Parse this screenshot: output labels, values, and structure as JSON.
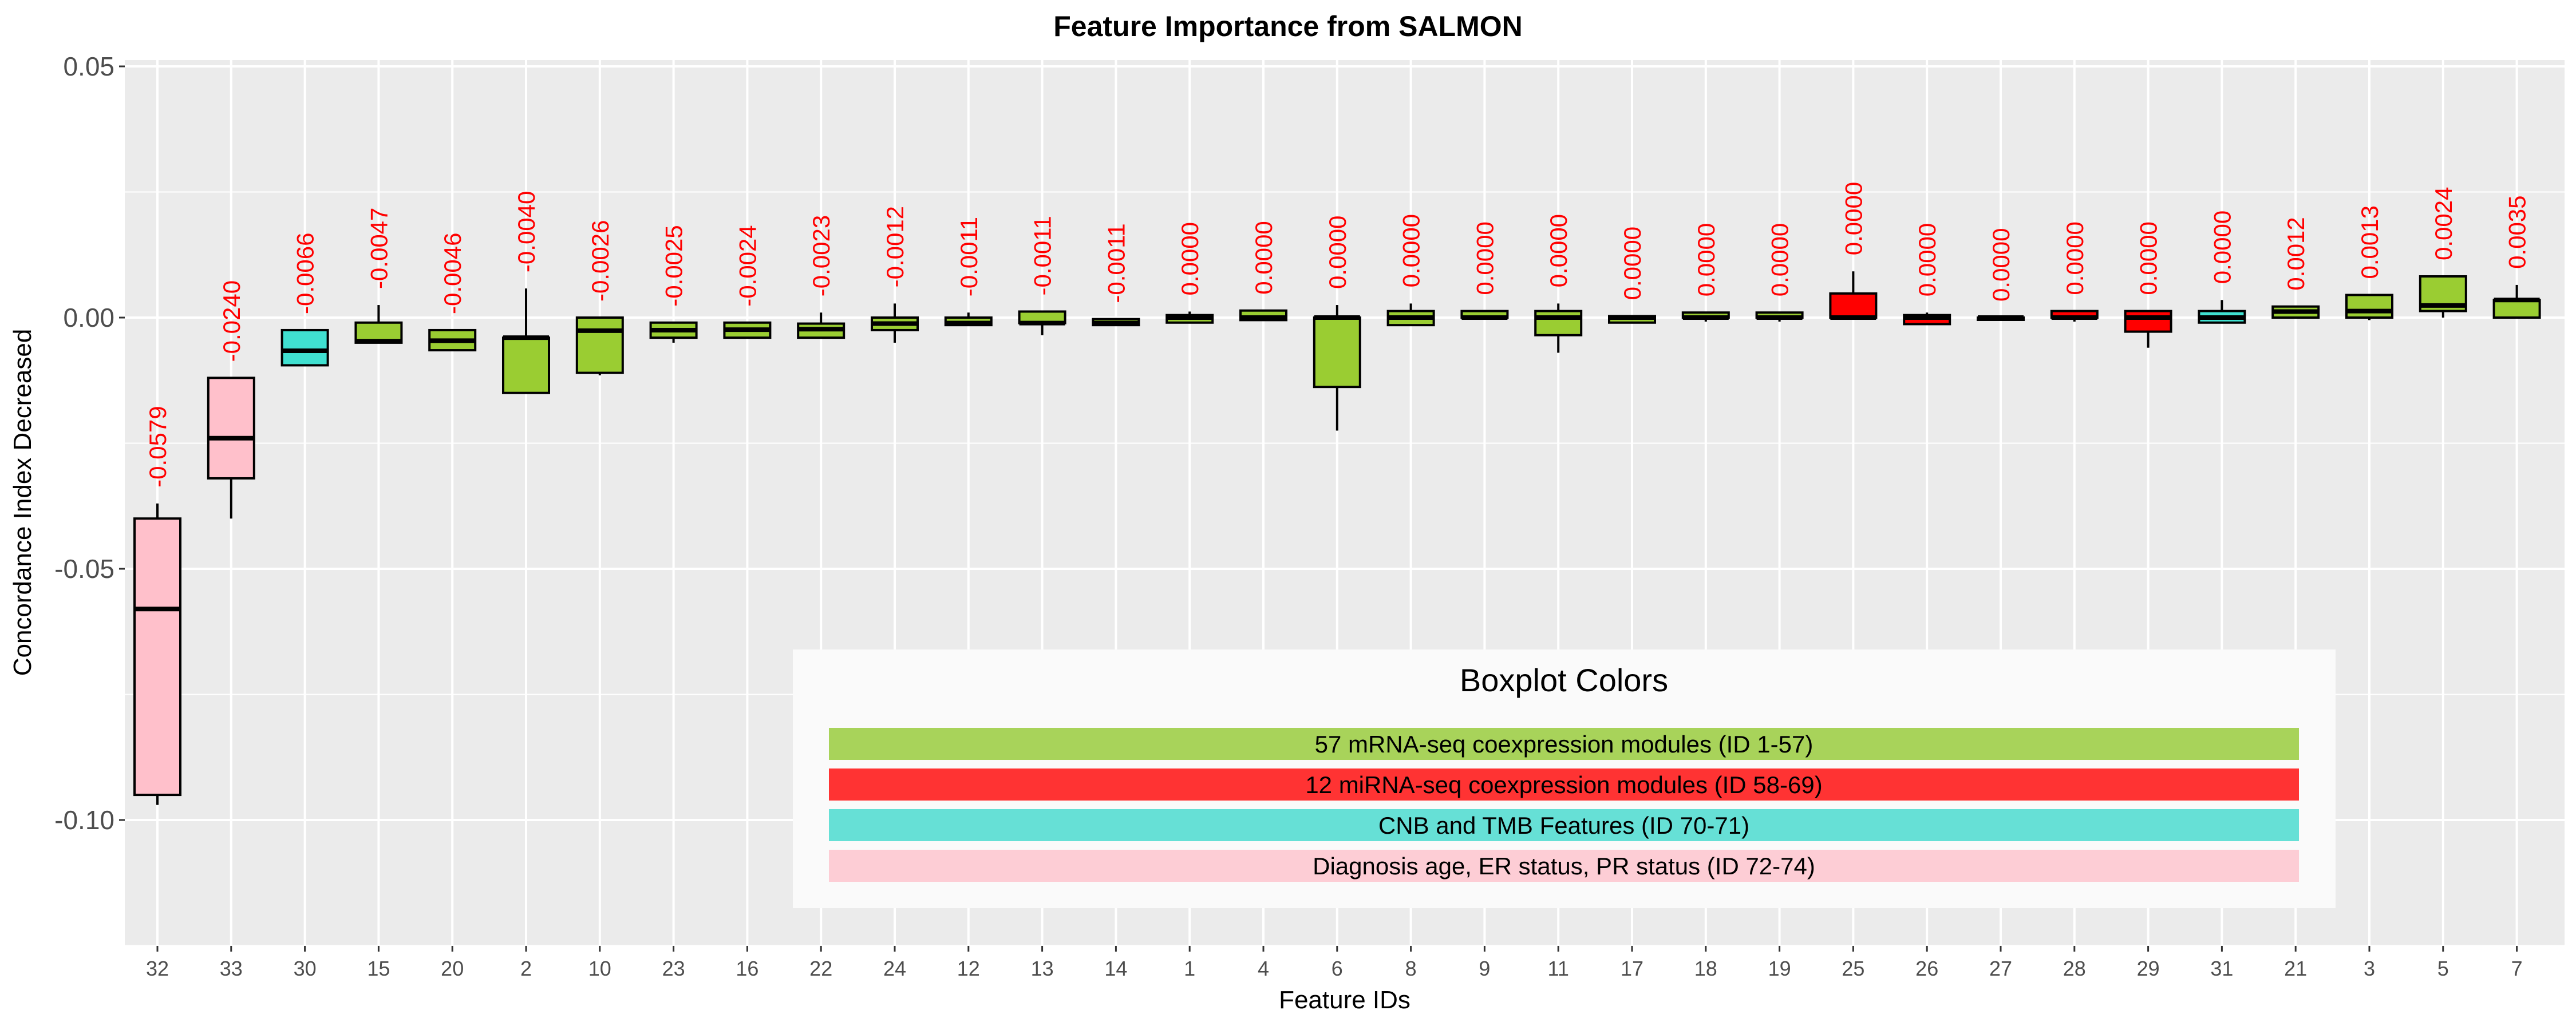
{
  "chart_data": {
    "type": "box",
    "title": "Feature Importance from SALMON",
    "xlabel": "Feature IDs",
    "ylabel": "Concordance Index Decreased",
    "ylim": [
      -0.125,
      0.052
    ],
    "yticks": [
      0.05,
      0.0,
      -0.05,
      -0.1
    ],
    "ytick_labels": [
      "0.05",
      "0.00",
      "-0.05",
      "-0.10"
    ],
    "grid": true,
    "colors": {
      "mrna": "#9ACD32",
      "mirna": "#FF0000",
      "cnb_tmb": "#40E0D0",
      "clinical": "#FFC0CB",
      "label": "#FF0000",
      "panel": "#EBEBEB",
      "grid": "#FFFFFF"
    },
    "boxes": [
      {
        "id": "32",
        "group": "clinical",
        "wlo": -0.097,
        "q1": -0.095,
        "med": -0.058,
        "q3": -0.04,
        "whi": -0.037,
        "label": "-0.0579"
      },
      {
        "id": "33",
        "group": "clinical",
        "wlo": -0.04,
        "q1": -0.032,
        "med": -0.024,
        "q3": -0.012,
        "whi": -0.012,
        "label": "-0.0240"
      },
      {
        "id": "30",
        "group": "cnb_tmb",
        "wlo": -0.0095,
        "q1": -0.0095,
        "med": -0.0066,
        "q3": -0.0025,
        "whi": -0.0025,
        "label": "-0.0066"
      },
      {
        "id": "15",
        "group": "mrna",
        "wlo": -0.005,
        "q1": -0.005,
        "med": -0.0047,
        "q3": -0.001,
        "whi": 0.0025,
        "label": "-0.0047"
      },
      {
        "id": "20",
        "group": "mrna",
        "wlo": -0.0065,
        "q1": -0.0065,
        "med": -0.0046,
        "q3": -0.0025,
        "whi": -0.0025,
        "label": "-0.0046"
      },
      {
        "id": "2",
        "group": "mrna",
        "wlo": -0.015,
        "q1": -0.015,
        "med": -0.004,
        "q3": -0.004,
        "whi": 0.0058,
        "label": "-0.0040"
      },
      {
        "id": "10",
        "group": "mrna",
        "wlo": -0.0115,
        "q1": -0.011,
        "med": -0.0026,
        "q3": 0.0,
        "whi": 0.0,
        "label": "-0.0026"
      },
      {
        "id": "23",
        "group": "mrna",
        "wlo": -0.005,
        "q1": -0.004,
        "med": -0.0025,
        "q3": -0.001,
        "whi": -0.001,
        "label": "-0.0025"
      },
      {
        "id": "16",
        "group": "mrna",
        "wlo": -0.004,
        "q1": -0.004,
        "med": -0.0024,
        "q3": -0.001,
        "whi": -0.001,
        "label": "-0.0024"
      },
      {
        "id": "22",
        "group": "mrna",
        "wlo": -0.004,
        "q1": -0.004,
        "med": -0.0023,
        "q3": -0.0012,
        "whi": 0.001,
        "label": "-0.0023"
      },
      {
        "id": "24",
        "group": "mrna",
        "wlo": -0.005,
        "q1": -0.0025,
        "med": -0.0012,
        "q3": 0.0,
        "whi": 0.0028,
        "label": "-0.0012"
      },
      {
        "id": "12",
        "group": "mrna",
        "wlo": -0.0015,
        "q1": -0.0015,
        "med": -0.0011,
        "q3": 0.0,
        "whi": 0.001,
        "label": "-0.0011"
      },
      {
        "id": "13",
        "group": "mrna",
        "wlo": -0.0035,
        "q1": -0.0011,
        "med": -0.0011,
        "q3": 0.0012,
        "whi": 0.0012,
        "label": "-0.0011"
      },
      {
        "id": "14",
        "group": "mrna",
        "wlo": -0.0015,
        "q1": -0.0015,
        "med": -0.0011,
        "q3": -0.0003,
        "whi": -0.0003,
        "label": "-0.0011"
      },
      {
        "id": "1",
        "group": "mrna",
        "wlo": -0.001,
        "q1": -0.001,
        "med": 0.0,
        "q3": 0.0005,
        "whi": 0.0012,
        "label": "0.0000"
      },
      {
        "id": "4",
        "group": "mrna",
        "wlo": -0.0005,
        "q1": -0.0005,
        "med": 0.0,
        "q3": 0.0014,
        "whi": 0.0014,
        "label": "0.0000"
      },
      {
        "id": "6",
        "group": "mrna",
        "wlo": -0.0225,
        "q1": -0.0138,
        "med": 0.0,
        "q3": 0.0,
        "whi": 0.0025,
        "label": "0.0000"
      },
      {
        "id": "8",
        "group": "mrna",
        "wlo": -0.0015,
        "q1": -0.0015,
        "med": 0.0,
        "q3": 0.0013,
        "whi": 0.0028,
        "label": "0.0000"
      },
      {
        "id": "9",
        "group": "mrna",
        "wlo": 0.0,
        "q1": 0.0,
        "med": 0.0,
        "q3": 0.0013,
        "whi": 0.0013,
        "label": "0.0000"
      },
      {
        "id": "11",
        "group": "mrna",
        "wlo": -0.007,
        "q1": -0.0035,
        "med": 0.0,
        "q3": 0.0013,
        "whi": 0.0028,
        "label": "0.0000"
      },
      {
        "id": "17",
        "group": "mrna",
        "wlo": -0.001,
        "q1": -0.001,
        "med": 0.0,
        "q3": 0.0003,
        "whi": 0.0003,
        "label": "0.0000"
      },
      {
        "id": "18",
        "group": "mrna",
        "wlo": -0.0008,
        "q1": 0.0,
        "med": 0.0,
        "q3": 0.001,
        "whi": 0.001,
        "label": "0.0000"
      },
      {
        "id": "19",
        "group": "mrna",
        "wlo": -0.0008,
        "q1": 0.0,
        "med": 0.0,
        "q3": 0.001,
        "whi": 0.001,
        "label": "0.0000"
      },
      {
        "id": "25",
        "group": "mirna",
        "wlo": 0.0,
        "q1": 0.0,
        "med": 0.0,
        "q3": 0.0048,
        "whi": 0.0092,
        "label": "0.0000"
      },
      {
        "id": "26",
        "group": "mirna",
        "wlo": -0.0013,
        "q1": -0.0013,
        "med": 0.0,
        "q3": 0.0005,
        "whi": 0.001,
        "label": "0.0000"
      },
      {
        "id": "27",
        "group": "mirna",
        "wlo": 0.0,
        "q1": 0.0,
        "med": 0.0,
        "q3": 0.0,
        "whi": 0.0,
        "label": "0.0000"
      },
      {
        "id": "28",
        "group": "mirna",
        "wlo": -0.0008,
        "q1": 0.0,
        "med": 0.0,
        "q3": 0.0013,
        "whi": 0.0013,
        "label": "0.0000"
      },
      {
        "id": "29",
        "group": "mirna",
        "wlo": -0.006,
        "q1": -0.0028,
        "med": 0.0,
        "q3": 0.0013,
        "whi": 0.0013,
        "label": "0.0000"
      },
      {
        "id": "31",
        "group": "cnb_tmb",
        "wlo": -0.001,
        "q1": -0.001,
        "med": 0.0,
        "q3": 0.0013,
        "whi": 0.0035,
        "label": "0.0000"
      },
      {
        "id": "21",
        "group": "mrna",
        "wlo": 0.0,
        "q1": 0.0,
        "med": 0.0012,
        "q3": 0.0022,
        "whi": 0.0022,
        "label": "0.0012"
      },
      {
        "id": "3",
        "group": "mrna",
        "wlo": -0.0005,
        "q1": 0.0,
        "med": 0.0013,
        "q3": 0.0045,
        "whi": 0.0045,
        "label": "0.0013"
      },
      {
        "id": "5",
        "group": "mrna",
        "wlo": 0.0,
        "q1": 0.0013,
        "med": 0.0024,
        "q3": 0.0082,
        "whi": 0.0082,
        "label": "0.0024"
      },
      {
        "id": "7",
        "group": "mrna",
        "wlo": 0.0,
        "q1": 0.0,
        "med": 0.0035,
        "q3": 0.0035,
        "whi": 0.0065,
        "label": "0.0035"
      }
    ],
    "legend": {
      "title": "Boxplot Colors",
      "placement": "bottom-center",
      "items": [
        {
          "group": "mrna",
          "label": "57 mRNA-seq coexpression modules (ID 1-57)",
          "color": "#A8D35A",
          "text_color": "#000000"
        },
        {
          "group": "mirna",
          "label": "12 miRNA-seq coexpression modules (ID 58-69)",
          "color": "#FF3333",
          "text_color": "#FFFFFF"
        },
        {
          "group": "cnb_tmb",
          "label": "CNB and TMB Features (ID 70-71)",
          "color": "#66E0D6",
          "text_color": "#000000"
        },
        {
          "group": "clinical",
          "label": "Diagnosis age, ER status, PR status (ID 72-74)",
          "color": "#FDCDD5",
          "text_color": "#000000"
        }
      ]
    }
  }
}
